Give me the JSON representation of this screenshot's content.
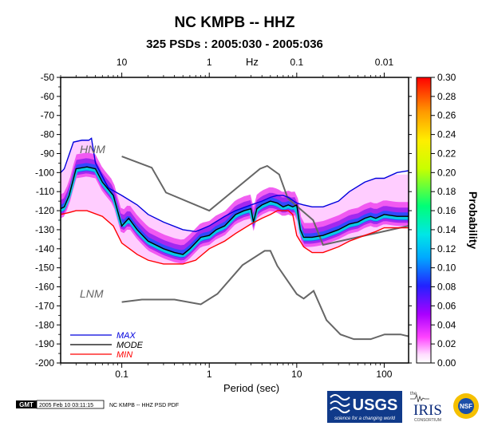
{
  "chart_data": {
    "type": "heatmap",
    "title": "NC KMPB -- HHZ",
    "subtitle": "325 PSDs : 2005:030 - 2005:036",
    "xlabel": "Period (sec)",
    "x2label": "Hz",
    "ylabel": "",
    "colorbar_label": "Probability",
    "x_scale": "log",
    "xlim": [
      0.02,
      190
    ],
    "ylim": [
      -200,
      -50
    ],
    "y_ticks": [
      -50,
      -60,
      -70,
      -80,
      -90,
      -100,
      -110,
      -120,
      -130,
      -140,
      -150,
      -160,
      -170,
      -180,
      -190,
      -200
    ],
    "x_ticks": [
      {
        "value": 0.1,
        "label": "0.1"
      },
      {
        "value": 1,
        "label": "1"
      },
      {
        "value": 10,
        "label": "10"
      },
      {
        "value": 100,
        "label": "100"
      }
    ],
    "x2_ticks": [
      {
        "value": 0.1,
        "label": "10"
      },
      {
        "value": 1,
        "label": "1"
      },
      {
        "value": 10,
        "label": "0.1"
      },
      {
        "value": 100,
        "label": "0.01"
      }
    ],
    "colorbar": {
      "range": [
        0,
        0.3
      ],
      "ticks": [
        "0.30",
        "0.28",
        "0.26",
        "0.24",
        "0.22",
        "0.20",
        "0.18",
        "0.16",
        "0.14",
        "0.12",
        "0.10",
        "0.08",
        "0.06",
        "0.04",
        "0.02",
        "0.00"
      ],
      "colors": [
        "#ffffff",
        "#ff44ff",
        "#aa00ff",
        "#2222ff",
        "#00aaff",
        "#00e6e6",
        "#00ff77",
        "#c8ff00",
        "#ffee00",
        "#ff9900",
        "#ff0000"
      ]
    },
    "noise_models": [
      {
        "label": "HNM",
        "x": [
          0.1,
          0.22,
          0.32,
          1.0,
          3.8,
          4.6,
          6.3,
          7.9,
          15.4,
          20,
          190
        ],
        "y": [
          -91.5,
          -97.4,
          -110.5,
          -120,
          -98,
          -96.5,
          -101,
          -113.5,
          -125,
          -138,
          -128
        ]
      },
      {
        "label": "LNM",
        "x": [
          0.1,
          0.17,
          0.4,
          0.8,
          1.24,
          2.4,
          4.3,
          5,
          6,
          10,
          12,
          15.6,
          21.9,
          31.6,
          45,
          70,
          101,
          154,
          190
        ],
        "y": [
          -168,
          -166.7,
          -166.7,
          -169.2,
          -163.7,
          -148.6,
          -141.1,
          -141.1,
          -149,
          -163.8,
          -166.2,
          -162.1,
          -177.5,
          -185,
          -187.5,
          -187.5,
          -185,
          -185,
          -186
        ]
      }
    ],
    "series": [
      {
        "name": "MAX",
        "color": "#0000dd",
        "x": [
          0.02,
          0.022,
          0.028,
          0.035,
          0.042,
          0.045,
          0.05,
          0.07,
          0.1,
          0.15,
          0.2,
          0.3,
          0.5,
          0.7,
          1.0,
          1.5,
          2,
          3,
          4,
          5,
          6,
          7,
          8,
          10,
          12,
          15,
          20,
          30,
          40,
          60,
          80,
          100,
          140,
          190
        ],
        "y": [
          -100,
          -98,
          -84,
          -83,
          -83,
          -82,
          -95,
          -108,
          -112,
          -117,
          -122,
          -126,
          -130,
          -131,
          -128,
          -123,
          -120,
          -117,
          -115,
          -113,
          -112,
          -112,
          -113,
          -116,
          -117,
          -118,
          -118,
          -115,
          -110,
          -105,
          -103,
          -103,
          -100,
          -99
        ]
      },
      {
        "name": "MODE",
        "color": "#000000",
        "x": [
          0.02,
          0.022,
          0.025,
          0.03,
          0.04,
          0.05,
          0.06,
          0.08,
          0.1,
          0.12,
          0.15,
          0.2,
          0.3,
          0.4,
          0.5,
          0.6,
          0.8,
          1.0,
          1.2,
          1.5,
          2,
          2.5,
          3,
          3.2,
          3.5,
          4,
          5,
          6,
          7,
          8,
          9,
          10,
          11,
          12,
          13,
          15,
          20,
          30,
          40,
          50,
          60,
          70,
          80,
          100,
          140,
          190
        ],
        "y": [
          -119,
          -118,
          -112,
          -98,
          -97,
          -98,
          -105,
          -112,
          -128,
          -124,
          -130,
          -136,
          -140,
          -142,
          -143,
          -140,
          -134,
          -133,
          -130,
          -128,
          -122,
          -120,
          -119,
          -126,
          -119,
          -117,
          -115,
          -116,
          -118,
          -117,
          -118,
          -117,
          -130,
          -134,
          -134,
          -134,
          -133,
          -130,
          -127,
          -126,
          -124,
          -123,
          -124,
          -122,
          -123,
          -123
        ]
      },
      {
        "name": "MIN",
        "color": "#ff0000",
        "x": [
          0.02,
          0.025,
          0.03,
          0.04,
          0.06,
          0.08,
          0.1,
          0.15,
          0.2,
          0.3,
          0.5,
          0.7,
          1.0,
          1.5,
          2,
          3,
          4,
          5,
          6,
          7,
          8,
          9,
          10,
          12,
          15,
          20,
          30,
          40,
          60,
          80,
          100,
          140,
          190
        ],
        "y": [
          -122,
          -121,
          -120,
          -120,
          -123,
          -128,
          -137,
          -143,
          -146,
          -148,
          -148,
          -146,
          -140,
          -136,
          -132,
          -127,
          -124,
          -122,
          -120,
          -120,
          -120,
          -122,
          -133,
          -139,
          -142,
          -142,
          -139,
          -136,
          -133,
          -131,
          -129,
          -129,
          -129
        ]
      }
    ],
    "legend": {
      "placement": "bottom-left",
      "entries": [
        "MAX",
        "MODE",
        "MIN"
      ]
    },
    "grid": false
  },
  "footer": {
    "gmt": "GMT",
    "timestamp": "2005 Feb 10 03:11:15",
    "caption": "NC KMPB -- HHZ PSD PDF"
  },
  "logos": {
    "usgs": "USGS",
    "usgs_tagline": "science for a changing world",
    "iris_prefix": "the",
    "iris": "IRIS",
    "iris_sub": "CONSORTIUM",
    "nsf": "NSF"
  }
}
